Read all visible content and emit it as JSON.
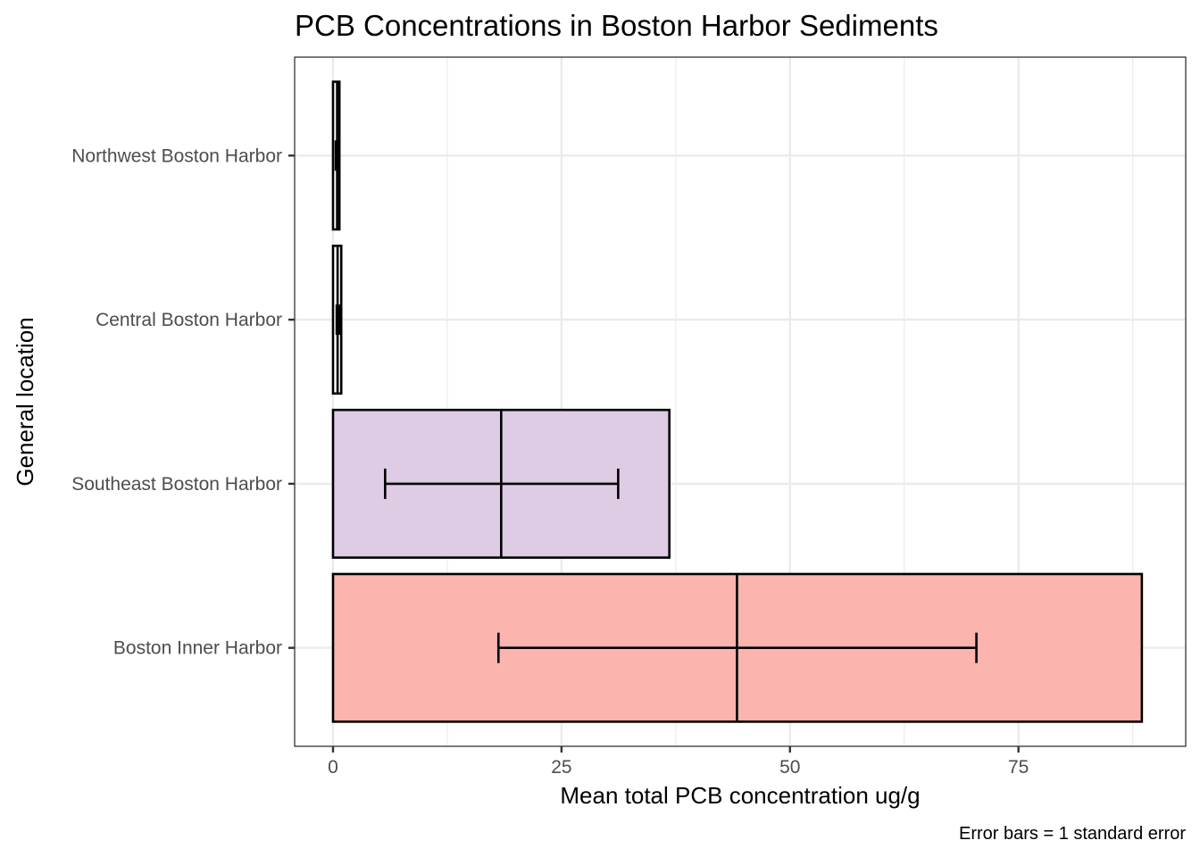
{
  "chart_data": {
    "type": "bar",
    "orientation": "horizontal",
    "title": "PCB Concentrations in Boston Harbor Sediments",
    "xlabel": "Mean total PCB concentration ug/g",
    "ylabel": "General location",
    "caption": "Error bars = 1 standard error",
    "xlim": [
      -4.2,
      93.3
    ],
    "x_ticks": [
      0,
      25,
      50,
      75
    ],
    "x_minor_ticks": [
      12.5,
      37.5,
      62.5,
      87.5
    ],
    "grid": true,
    "categories": [
      "Northwest Boston Harbor",
      "Central Boston Harbor",
      "Southeast Boston Harbor",
      "Boston Inner Harbor"
    ],
    "values": [
      0.7,
      0.9,
      36.8,
      88.5
    ],
    "means": [
      0.45,
      0.5,
      18.4,
      44.2
    ],
    "error_low": [
      0.3,
      0.4,
      5.7,
      18.1
    ],
    "error_high": [
      0.6,
      0.7,
      31.2,
      70.4
    ],
    "colors": [
      "#ffffff",
      "#ffffff",
      "#decbe4",
      "#fbb4ae"
    ]
  }
}
